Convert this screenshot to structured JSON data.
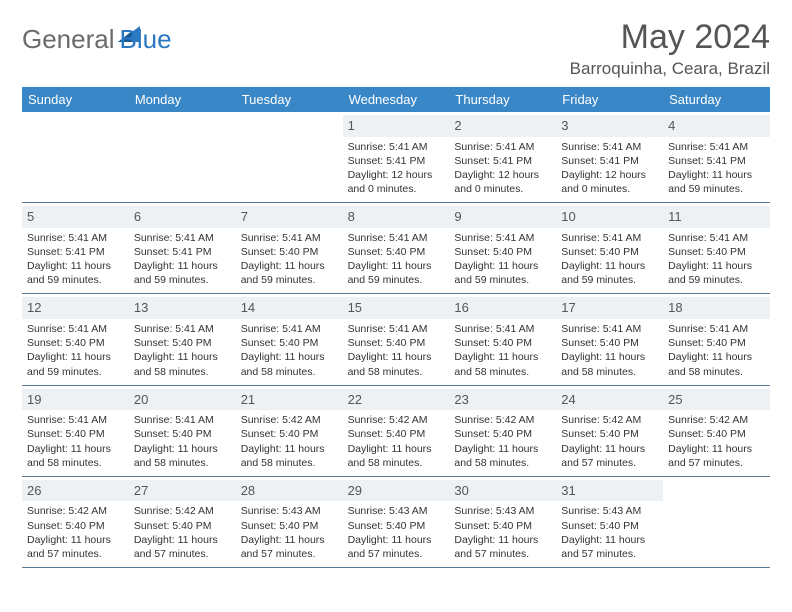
{
  "logo": {
    "general": "General",
    "blue": "Blue",
    "shape_color": "#2b79c2"
  },
  "title": "May 2024",
  "location": "Barroquinha, Ceara, Brazil",
  "colors": {
    "header_bg": "#3a87c8",
    "header_text": "#ffffff",
    "daynum_bg": "#eef1f4",
    "row_border": "#5a7a9a",
    "body_text": "#333333",
    "title_text": "#555555"
  },
  "weekdays": [
    "Sunday",
    "Monday",
    "Tuesday",
    "Wednesday",
    "Thursday",
    "Friday",
    "Saturday"
  ],
  "weeks": [
    [
      {
        "empty": true
      },
      {
        "empty": true
      },
      {
        "empty": true
      },
      {
        "n": "1",
        "sunrise": "5:41 AM",
        "sunset": "5:41 PM",
        "daylight": "12 hours and 0 minutes."
      },
      {
        "n": "2",
        "sunrise": "5:41 AM",
        "sunset": "5:41 PM",
        "daylight": "12 hours and 0 minutes."
      },
      {
        "n": "3",
        "sunrise": "5:41 AM",
        "sunset": "5:41 PM",
        "daylight": "12 hours and 0 minutes."
      },
      {
        "n": "4",
        "sunrise": "5:41 AM",
        "sunset": "5:41 PM",
        "daylight": "11 hours and 59 minutes."
      }
    ],
    [
      {
        "n": "5",
        "sunrise": "5:41 AM",
        "sunset": "5:41 PM",
        "daylight": "11 hours and 59 minutes."
      },
      {
        "n": "6",
        "sunrise": "5:41 AM",
        "sunset": "5:41 PM",
        "daylight": "11 hours and 59 minutes."
      },
      {
        "n": "7",
        "sunrise": "5:41 AM",
        "sunset": "5:40 PM",
        "daylight": "11 hours and 59 minutes."
      },
      {
        "n": "8",
        "sunrise": "5:41 AM",
        "sunset": "5:40 PM",
        "daylight": "11 hours and 59 minutes."
      },
      {
        "n": "9",
        "sunrise": "5:41 AM",
        "sunset": "5:40 PM",
        "daylight": "11 hours and 59 minutes."
      },
      {
        "n": "10",
        "sunrise": "5:41 AM",
        "sunset": "5:40 PM",
        "daylight": "11 hours and 59 minutes."
      },
      {
        "n": "11",
        "sunrise": "5:41 AM",
        "sunset": "5:40 PM",
        "daylight": "11 hours and 59 minutes."
      }
    ],
    [
      {
        "n": "12",
        "sunrise": "5:41 AM",
        "sunset": "5:40 PM",
        "daylight": "11 hours and 59 minutes."
      },
      {
        "n": "13",
        "sunrise": "5:41 AM",
        "sunset": "5:40 PM",
        "daylight": "11 hours and 58 minutes."
      },
      {
        "n": "14",
        "sunrise": "5:41 AM",
        "sunset": "5:40 PM",
        "daylight": "11 hours and 58 minutes."
      },
      {
        "n": "15",
        "sunrise": "5:41 AM",
        "sunset": "5:40 PM",
        "daylight": "11 hours and 58 minutes."
      },
      {
        "n": "16",
        "sunrise": "5:41 AM",
        "sunset": "5:40 PM",
        "daylight": "11 hours and 58 minutes."
      },
      {
        "n": "17",
        "sunrise": "5:41 AM",
        "sunset": "5:40 PM",
        "daylight": "11 hours and 58 minutes."
      },
      {
        "n": "18",
        "sunrise": "5:41 AM",
        "sunset": "5:40 PM",
        "daylight": "11 hours and 58 minutes."
      }
    ],
    [
      {
        "n": "19",
        "sunrise": "5:41 AM",
        "sunset": "5:40 PM",
        "daylight": "11 hours and 58 minutes."
      },
      {
        "n": "20",
        "sunrise": "5:41 AM",
        "sunset": "5:40 PM",
        "daylight": "11 hours and 58 minutes."
      },
      {
        "n": "21",
        "sunrise": "5:42 AM",
        "sunset": "5:40 PM",
        "daylight": "11 hours and 58 minutes."
      },
      {
        "n": "22",
        "sunrise": "5:42 AM",
        "sunset": "5:40 PM",
        "daylight": "11 hours and 58 minutes."
      },
      {
        "n": "23",
        "sunrise": "5:42 AM",
        "sunset": "5:40 PM",
        "daylight": "11 hours and 58 minutes."
      },
      {
        "n": "24",
        "sunrise": "5:42 AM",
        "sunset": "5:40 PM",
        "daylight": "11 hours and 57 minutes."
      },
      {
        "n": "25",
        "sunrise": "5:42 AM",
        "sunset": "5:40 PM",
        "daylight": "11 hours and 57 minutes."
      }
    ],
    [
      {
        "n": "26",
        "sunrise": "5:42 AM",
        "sunset": "5:40 PM",
        "daylight": "11 hours and 57 minutes."
      },
      {
        "n": "27",
        "sunrise": "5:42 AM",
        "sunset": "5:40 PM",
        "daylight": "11 hours and 57 minutes."
      },
      {
        "n": "28",
        "sunrise": "5:43 AM",
        "sunset": "5:40 PM",
        "daylight": "11 hours and 57 minutes."
      },
      {
        "n": "29",
        "sunrise": "5:43 AM",
        "sunset": "5:40 PM",
        "daylight": "11 hours and 57 minutes."
      },
      {
        "n": "30",
        "sunrise": "5:43 AM",
        "sunset": "5:40 PM",
        "daylight": "11 hours and 57 minutes."
      },
      {
        "n": "31",
        "sunrise": "5:43 AM",
        "sunset": "5:40 PM",
        "daylight": "11 hours and 57 minutes."
      },
      {
        "empty": true
      }
    ]
  ],
  "labels": {
    "sunrise": "Sunrise: ",
    "sunset": "Sunset: ",
    "daylight": "Daylight: "
  }
}
